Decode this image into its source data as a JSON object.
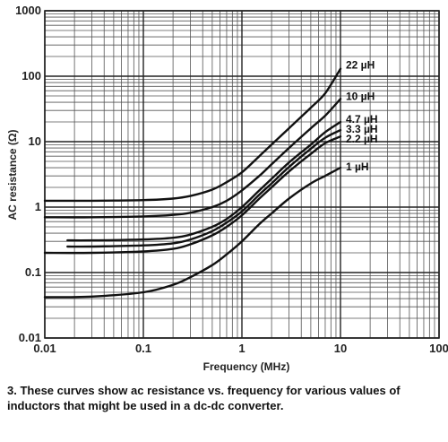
{
  "caption": "3. These curves show ac resistance vs. frequency for various values of inductors that might be used in a dc-dc converter.",
  "chart_data": {
    "type": "line",
    "title": "",
    "xlabel": "Frequency (MHz)",
    "ylabel": "AC resistance (Ω)",
    "x_scale": "log",
    "y_scale": "log",
    "xlim": [
      0.01,
      100
    ],
    "ylim": [
      0.01,
      1000
    ],
    "x_tick_labels": [
      "0.01",
      "0.1",
      "1",
      "10",
      "100"
    ],
    "y_tick_labels": [
      "0.01",
      "0.1",
      "1",
      "10",
      "100",
      "1000"
    ],
    "grid": true,
    "x": [
      0.01,
      0.03,
      0.1,
      0.2,
      0.3,
      0.5,
      0.7,
      1,
      1.5,
      2,
      3,
      5,
      7,
      10
    ],
    "series": [
      {
        "name": "22 µH",
        "x_start": 0.01,
        "values": [
          1.25,
          1.25,
          1.28,
          1.35,
          1.48,
          1.85,
          2.4,
          3.4,
          6.0,
          9.0,
          16.0,
          33.0,
          55.0,
          130.0
        ]
      },
      {
        "name": "10 µH",
        "x_start": 0.01,
        "values": [
          0.7,
          0.7,
          0.72,
          0.76,
          0.82,
          1.0,
          1.25,
          1.8,
          3.0,
          4.5,
          8.0,
          16.0,
          25.0,
          45.0
        ]
      },
      {
        "name": "4.7 µH",
        "x_start": 0.017,
        "values": [
          0.31,
          0.31,
          0.32,
          0.34,
          0.38,
          0.5,
          0.66,
          1.0,
          1.8,
          2.7,
          4.8,
          9.0,
          14.0,
          20.0
        ]
      },
      {
        "name": "3.3 µH",
        "x_start": 0.017,
        "values": [
          0.25,
          0.25,
          0.26,
          0.28,
          0.32,
          0.43,
          0.58,
          0.86,
          1.55,
          2.3,
          4.1,
          7.8,
          11.5,
          15.0
        ]
      },
      {
        "name": "2.2 µH",
        "x_start": 0.01,
        "values": [
          0.2,
          0.2,
          0.21,
          0.23,
          0.27,
          0.37,
          0.5,
          0.75,
          1.35,
          2.0,
          3.5,
          6.5,
          9.5,
          12.0
        ]
      },
      {
        "name": "1 µH",
        "x_start": 0.01,
        "values": [
          0.042,
          0.043,
          0.05,
          0.065,
          0.085,
          0.13,
          0.19,
          0.3,
          0.55,
          0.8,
          1.35,
          2.3,
          3.0,
          4.0
        ]
      }
    ]
  }
}
